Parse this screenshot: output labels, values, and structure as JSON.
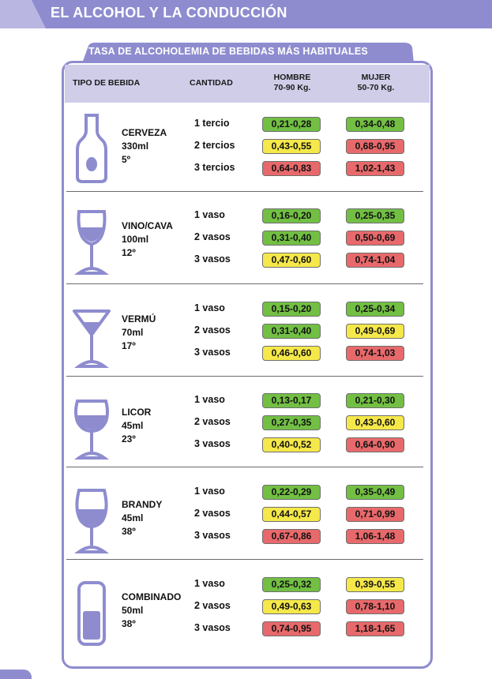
{
  "page": {
    "header": "EL ALCOHOL Y LA CONDUCCIÓN"
  },
  "table": {
    "title": "TASA DE ALCOHOLEMIA DE BEBIDAS MÁS HABITUALES",
    "headers": {
      "type": "TIPO DE BEBIDA",
      "qty": "CANTIDAD",
      "men": "HOMBRE",
      "men_weight": "70-90 Kg.",
      "women": "MUJER",
      "women_weight": "50-70 Kg."
    },
    "colors": {
      "green": "#72bf44",
      "yellow": "#f5e84a",
      "red": "#e8696b",
      "accent": "#8e8ccf"
    },
    "drinks": [
      {
        "icon": "beer-bottle-icon",
        "name": "CERVEZA",
        "volume": "330ml",
        "degree": "5º",
        "rows": [
          {
            "qty": "1 tercio",
            "men": "0,21-0,28",
            "men_level": "green",
            "women": "0,34-0,48",
            "women_level": "green"
          },
          {
            "qty": "2 tercios",
            "men": "0,43-0,55",
            "men_level": "yellow",
            "women": "0,68-0,95",
            "women_level": "red"
          },
          {
            "qty": "3 tercios",
            "men": "0,64-0,83",
            "men_level": "red",
            "women": "1,02-1,43",
            "women_level": "red"
          }
        ]
      },
      {
        "icon": "wine-glass-icon",
        "name": "VINO/CAVA",
        "volume": "100ml",
        "degree": "12º",
        "rows": [
          {
            "qty": "1 vaso",
            "men": "0,16-0,20",
            "men_level": "green",
            "women": "0,25-0,35",
            "women_level": "green"
          },
          {
            "qty": "2 vasos",
            "men": "0,31-0,40",
            "men_level": "green",
            "women": "0,50-0,69",
            "women_level": "red"
          },
          {
            "qty": "3 vasos",
            "men": "0,47-0,60",
            "men_level": "yellow",
            "women": "0,74-1,04",
            "women_level": "red"
          }
        ]
      },
      {
        "icon": "martini-glass-icon",
        "name": "VERMÚ",
        "volume": "70ml",
        "degree": "17º",
        "rows": [
          {
            "qty": "1 vaso",
            "men": "0,15-0,20",
            "men_level": "green",
            "women": "0,25-0,34",
            "women_level": "green"
          },
          {
            "qty": "2 vasos",
            "men": "0,31-0,40",
            "men_level": "green",
            "women": "0,49-0,69",
            "women_level": "yellow"
          },
          {
            "qty": "3 vasos",
            "men": "0,46-0,60",
            "men_level": "yellow",
            "women": "0,74-1,03",
            "women_level": "red"
          }
        ]
      },
      {
        "icon": "liqueur-glass-icon",
        "name": "LICOR",
        "volume": "45ml",
        "degree": "23º",
        "rows": [
          {
            "qty": "1 vaso",
            "men": "0,13-0,17",
            "men_level": "green",
            "women": "0,21-0,30",
            "women_level": "green"
          },
          {
            "qty": "2 vasos",
            "men": "0,27-0,35",
            "men_level": "green",
            "women": "0,43-0,60",
            "women_level": "yellow"
          },
          {
            "qty": "3 vasos",
            "men": "0,40-0,52",
            "men_level": "yellow",
            "women": "0,64-0,90",
            "women_level": "red"
          }
        ]
      },
      {
        "icon": "brandy-glass-icon",
        "name": "BRANDY",
        "volume": "45ml",
        "degree": "38º",
        "rows": [
          {
            "qty": "1 vaso",
            "men": "0,22-0,29",
            "men_level": "green",
            "women": "0,35-0,49",
            "women_level": "green"
          },
          {
            "qty": "2 vasos",
            "men": "0,44-0,57",
            "men_level": "yellow",
            "women": "0,71-0,99",
            "women_level": "red"
          },
          {
            "qty": "3 vasos",
            "men": "0,67-0,86",
            "men_level": "red",
            "women": "1,06-1,48",
            "women_level": "red"
          }
        ]
      },
      {
        "icon": "highball-glass-icon",
        "name": "COMBINADO",
        "volume": "50ml",
        "degree": "38º",
        "rows": [
          {
            "qty": "1 vaso",
            "men": "0,25-0,32",
            "men_level": "green",
            "women": "0,39-0,55",
            "women_level": "yellow"
          },
          {
            "qty": "2 vasos",
            "men": "0,49-0,63",
            "men_level": "yellow",
            "women": "0,78-1,10",
            "women_level": "red"
          },
          {
            "qty": "3 vasos",
            "men": "0,74-0,95",
            "men_level": "red",
            "women": "1,18-1,65",
            "women_level": "red"
          }
        ]
      }
    ]
  }
}
